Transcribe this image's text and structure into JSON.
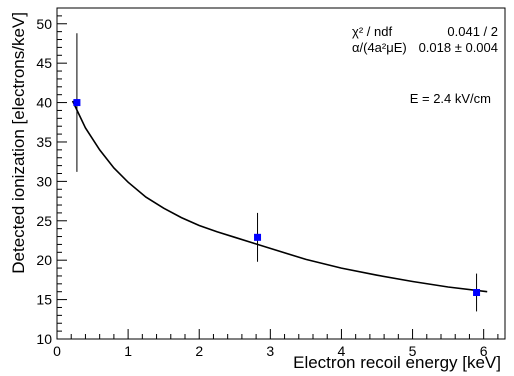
{
  "chart_data": {
    "type": "scatter",
    "xlabel": "Electron recoil energy [keV]",
    "ylabel": "Detected ionization [electrons/keV]",
    "xlim": [
      0,
      6.3
    ],
    "ylim": [
      10,
      52
    ],
    "x_ticks": [
      0,
      1,
      2,
      3,
      4,
      5,
      6
    ],
    "y_ticks": [
      10,
      15,
      20,
      25,
      30,
      35,
      40,
      45,
      50
    ],
    "points": [
      {
        "x": 0.28,
        "y": 40.0,
        "yerr_low": 31.2,
        "yerr_high": 48.8
      },
      {
        "x": 2.82,
        "y": 22.9,
        "yerr_low": 19.8,
        "yerr_high": 26.0
      },
      {
        "x": 5.9,
        "y": 15.9,
        "yerr_low": 13.5,
        "yerr_high": 18.3
      }
    ],
    "fit_curve": {
      "x": [
        0.22,
        0.4,
        0.6,
        0.8,
        1.0,
        1.25,
        1.5,
        1.75,
        2.0,
        2.25,
        2.5,
        2.75,
        3.0,
        3.5,
        4.0,
        4.5,
        5.0,
        5.5,
        6.05
      ],
      "y": [
        40.2,
        36.8,
        34.0,
        31.7,
        29.9,
        28.0,
        26.6,
        25.4,
        24.4,
        23.6,
        22.9,
        22.2,
        21.5,
        20.1,
        19.0,
        18.1,
        17.3,
        16.6,
        16.0
      ]
    },
    "stats_box": {
      "row1_label": "χ² / ndf",
      "row1_value": "0.041 / 2",
      "row2_label": "α/(4a²μE)",
      "row2_value": "0.018 ± 0.004"
    },
    "annotation": "E = 2.4 kV/cm",
    "marker_color": "#0000ff",
    "curve_color": "#000000"
  }
}
